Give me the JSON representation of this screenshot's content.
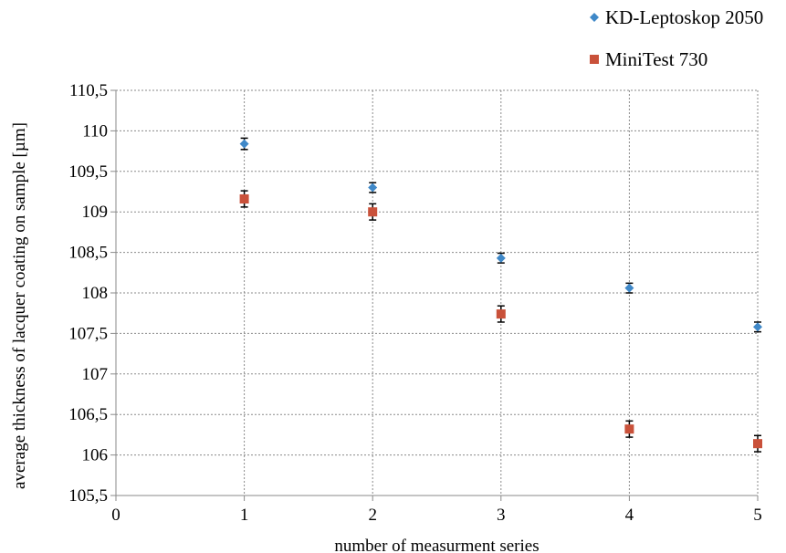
{
  "chart_data": {
    "type": "scatter",
    "title": "",
    "xlabel": "number of measurment series",
    "ylabel": "average thickness of lacquer coating on sample  [µm]",
    "xlim": [
      0,
      5
    ],
    "ylim": [
      105.5,
      110.5
    ],
    "x_ticks": [
      0,
      1,
      2,
      3,
      4,
      5
    ],
    "y_ticks": [
      105.5,
      106,
      106.5,
      107,
      107.5,
      108,
      108.5,
      109,
      109.5,
      110,
      110.5
    ],
    "y_tick_labels": [
      "105,5",
      "106",
      "106,5",
      "107",
      "107,5",
      "108",
      "108,5",
      "109",
      "109,5",
      "110",
      "110,5"
    ],
    "grid": true,
    "legend_position": "top-right",
    "series": [
      {
        "name": "KD-Leptoskop 2050",
        "color": "#3f88c8",
        "marker": "diamond",
        "x": [
          1,
          2,
          3,
          4,
          5
        ],
        "y": [
          109.84,
          109.3,
          108.43,
          108.06,
          107.58
        ],
        "error": [
          0.07,
          0.06,
          0.06,
          0.06,
          0.06
        ]
      },
      {
        "name": "MiniTest 730",
        "color": "#c9513a",
        "marker": "square",
        "x": [
          1,
          2,
          3,
          4,
          5
        ],
        "y": [
          109.16,
          109.0,
          107.74,
          106.32,
          106.14
        ],
        "error": [
          0.1,
          0.1,
          0.1,
          0.1,
          0.1
        ]
      }
    ]
  }
}
